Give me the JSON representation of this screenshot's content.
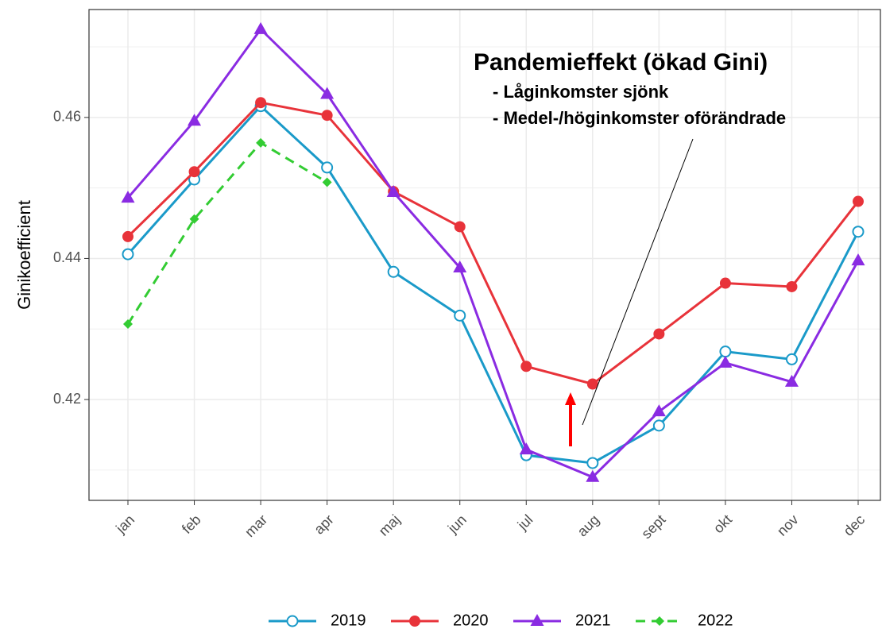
{
  "chart_data": {
    "type": "line",
    "y_label": "Ginikoefficient",
    "categories": [
      "jan",
      "feb",
      "mar",
      "apr",
      "maj",
      "jun",
      "jul",
      "aug",
      "sept",
      "okt",
      "nov",
      "dec"
    ],
    "series": [
      {
        "name": "2019",
        "color": "#1a9ac9",
        "marker": "open-circle",
        "values": [
          0.4406,
          0.4512,
          0.4616,
          0.4529,
          0.4381,
          0.4319,
          0.4121,
          0.411,
          0.4163,
          0.4268,
          0.4257,
          0.4438
        ]
      },
      {
        "name": "2020",
        "color": "#e8333a",
        "marker": "circle",
        "values": [
          0.4431,
          0.4523,
          0.4621,
          0.4603,
          0.4495,
          0.4445,
          0.4247,
          0.4222,
          0.4293,
          0.4365,
          0.436,
          0.4481
        ]
      },
      {
        "name": "2021",
        "color": "#8a2be2",
        "marker": "triangle",
        "values": [
          0.4486,
          0.4595,
          0.4725,
          0.4633,
          0.4494,
          0.4387,
          0.4129,
          0.409,
          0.4183,
          0.4252,
          0.4225,
          0.4397
        ]
      },
      {
        "name": "2022",
        "color": "#33cc33",
        "marker": "diamond",
        "dashed": true,
        "values": [
          0.4307,
          0.4456,
          0.4564,
          0.4508,
          null,
          null,
          null,
          null,
          null,
          null,
          null,
          null
        ]
      }
    ],
    "ylim": [
      0.4057,
      0.4753
    ],
    "yticks": [
      0.42,
      0.44,
      0.46
    ],
    "grid": true,
    "legend": "bottom",
    "annotation": {
      "title": "Pandemieffekt (ökad Gini)",
      "lines": [
        "- Låginkomster sjönk",
        "- Medel-/höginkomster oförändrade"
      ]
    }
  }
}
